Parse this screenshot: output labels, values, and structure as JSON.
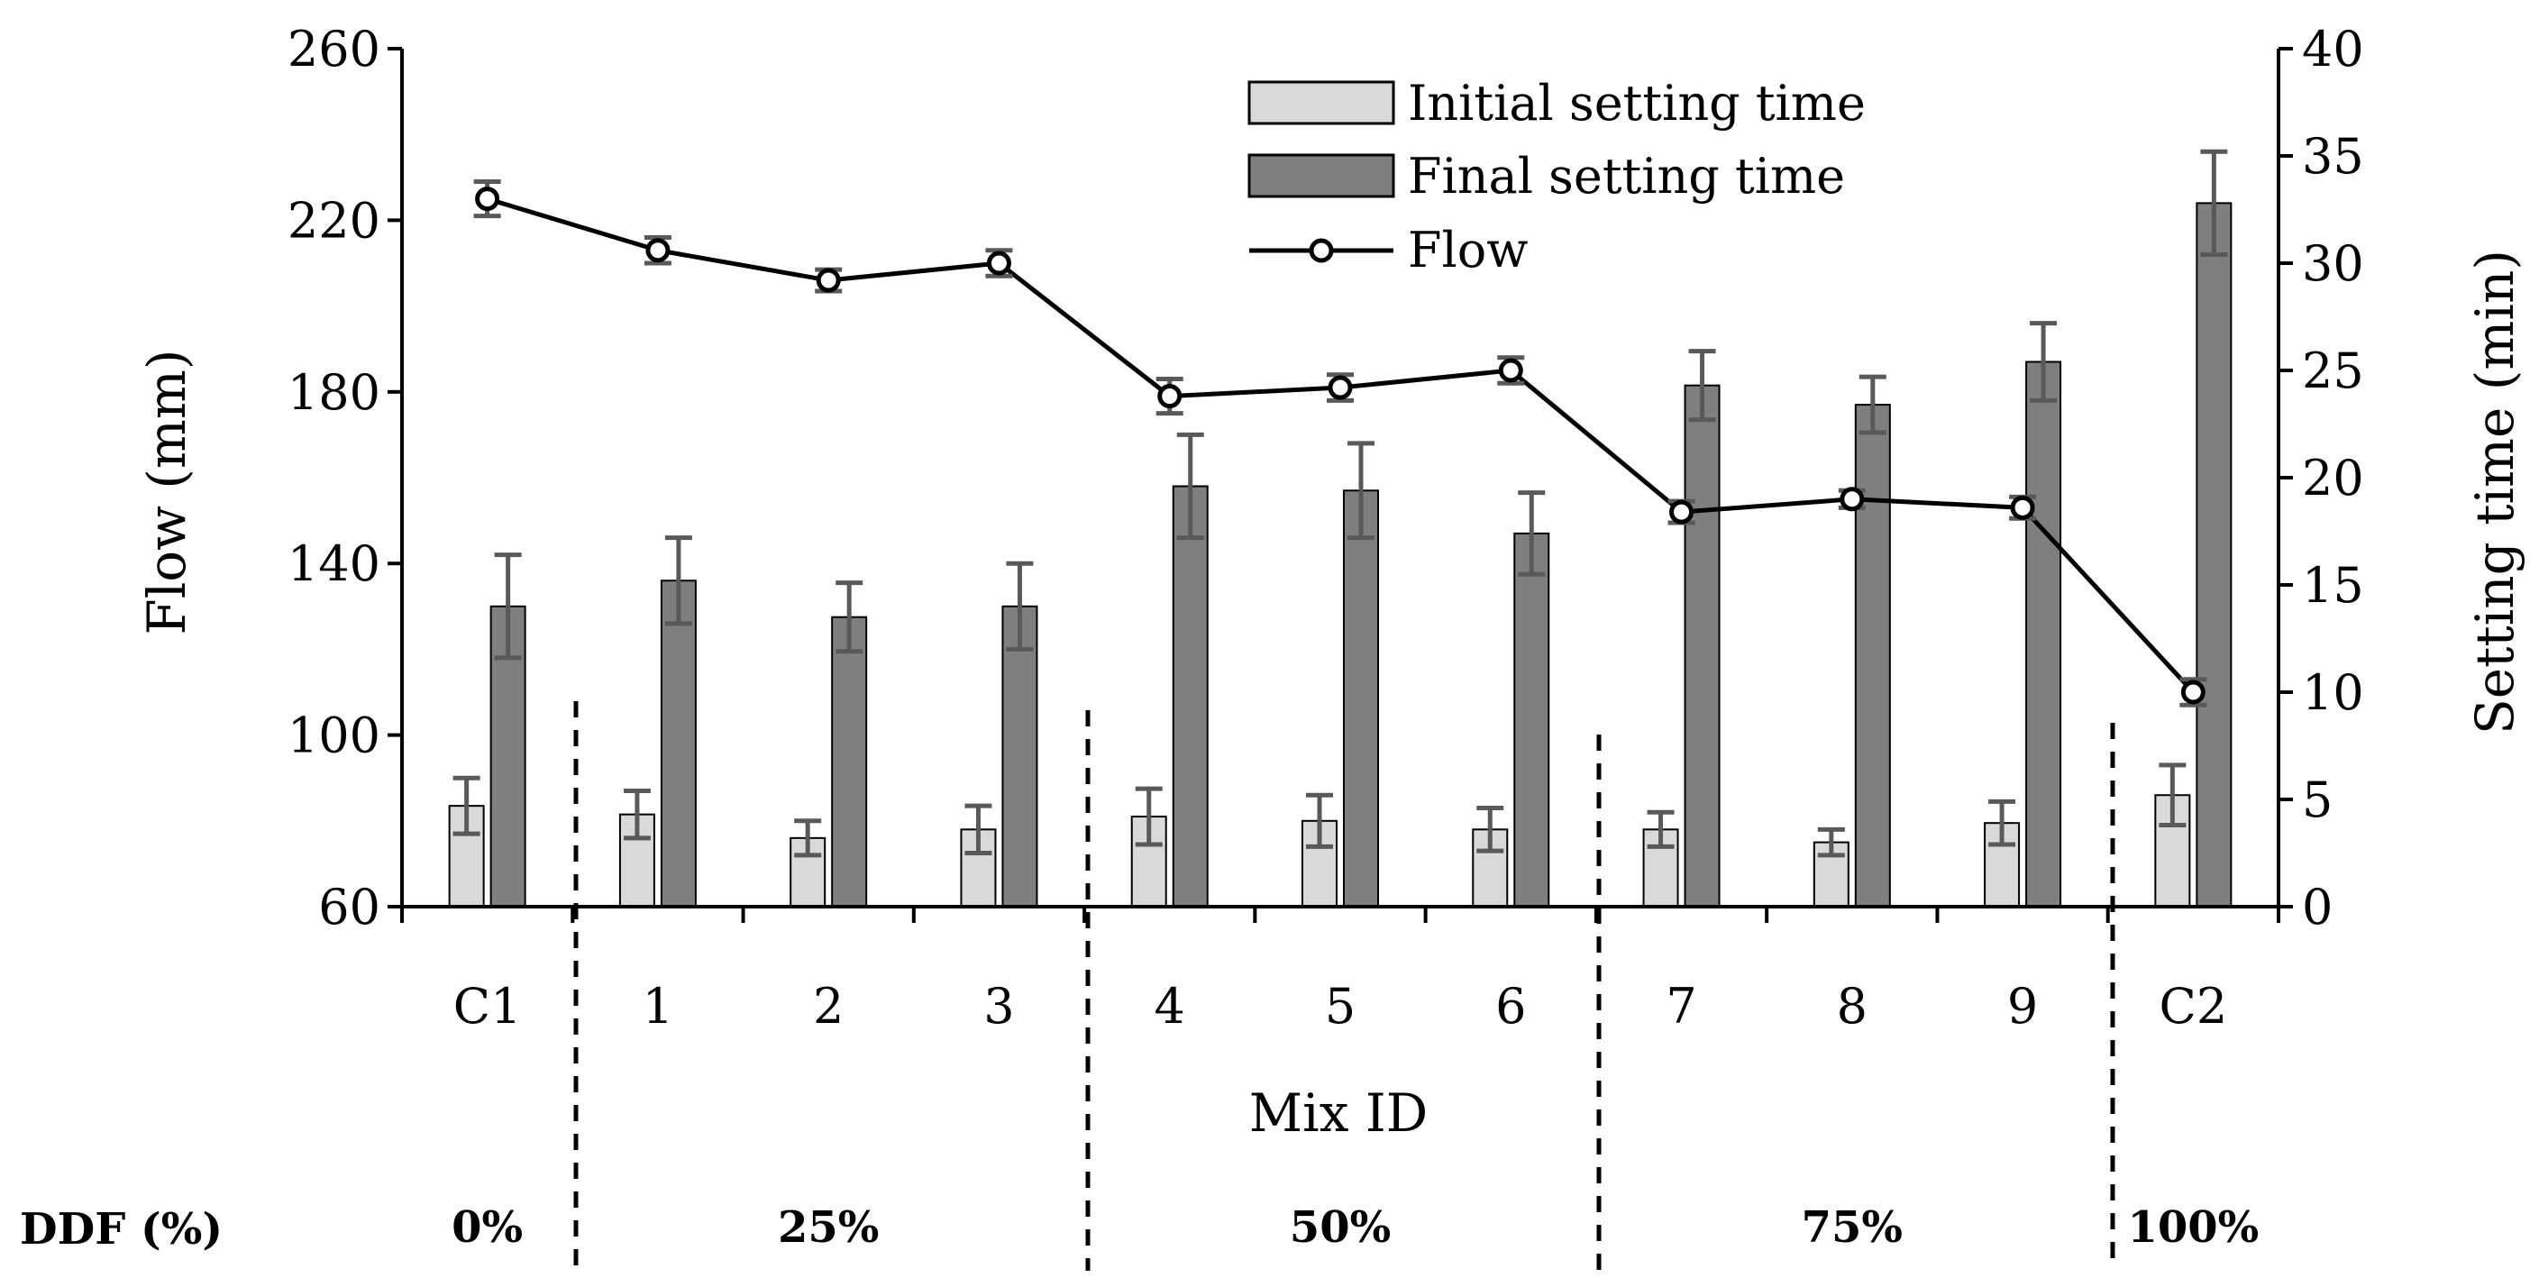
{
  "chart_data": {
    "type": "bar",
    "xlabel": "Mix ID",
    "ylabel_left": "Flow (mm)",
    "ylabel_right": "Setting time (min)",
    "ylim_left": [
      60,
      260
    ],
    "yticks_left": [
      60,
      100,
      140,
      180,
      220,
      260
    ],
    "ylim_right": [
      0,
      40
    ],
    "yticks_right": [
      0,
      5,
      10,
      15,
      20,
      25,
      30,
      35,
      40
    ],
    "categories": [
      "C1",
      "1",
      "2",
      "3",
      "4",
      "5",
      "6",
      "7",
      "8",
      "9",
      "C2"
    ],
    "series": [
      {
        "name": "Initial setting time",
        "kind": "bar",
        "axis": "right",
        "color": "#d9d9d9",
        "values": [
          4.7,
          4.3,
          3.2,
          3.6,
          4.2,
          4.0,
          3.6,
          3.6,
          3.0,
          3.9,
          5.2
        ],
        "errors": [
          1.3,
          1.1,
          0.8,
          1.1,
          1.3,
          1.2,
          1.0,
          0.8,
          0.6,
          1.0,
          1.4
        ]
      },
      {
        "name": "Final setting time",
        "kind": "bar",
        "axis": "right",
        "color": "#7f7f7f",
        "values": [
          14.0,
          15.2,
          13.5,
          14.0,
          19.6,
          19.4,
          17.4,
          24.3,
          23.4,
          25.4,
          32.8
        ],
        "errors": [
          2.4,
          2.0,
          1.6,
          2.0,
          2.4,
          2.2,
          1.9,
          1.6,
          1.3,
          1.8,
          2.4
        ]
      },
      {
        "name": "Flow",
        "kind": "line",
        "axis": "left",
        "color": "#000000",
        "values": [
          225,
          213,
          206,
          210,
          179,
          181,
          185,
          152,
          155,
          153,
          110
        ],
        "errors": [
          4,
          3,
          2.5,
          3,
          4,
          3,
          3,
          2.5,
          2,
          2.5,
          3
        ]
      }
    ],
    "legend": [
      "Initial setting time",
      "Final setting time",
      "Flow"
    ],
    "legend_position": "top-center"
  },
  "ddf": {
    "label": "DDF (%)",
    "groups": [
      {
        "label": "0%",
        "from": 0,
        "to": 0
      },
      {
        "label": "25%",
        "from": 1,
        "to": 3
      },
      {
        "label": "50%",
        "from": 4,
        "to": 6
      },
      {
        "label": "75%",
        "from": 7,
        "to": 9
      },
      {
        "label": "100%",
        "from": 10,
        "to": 10
      }
    ]
  }
}
